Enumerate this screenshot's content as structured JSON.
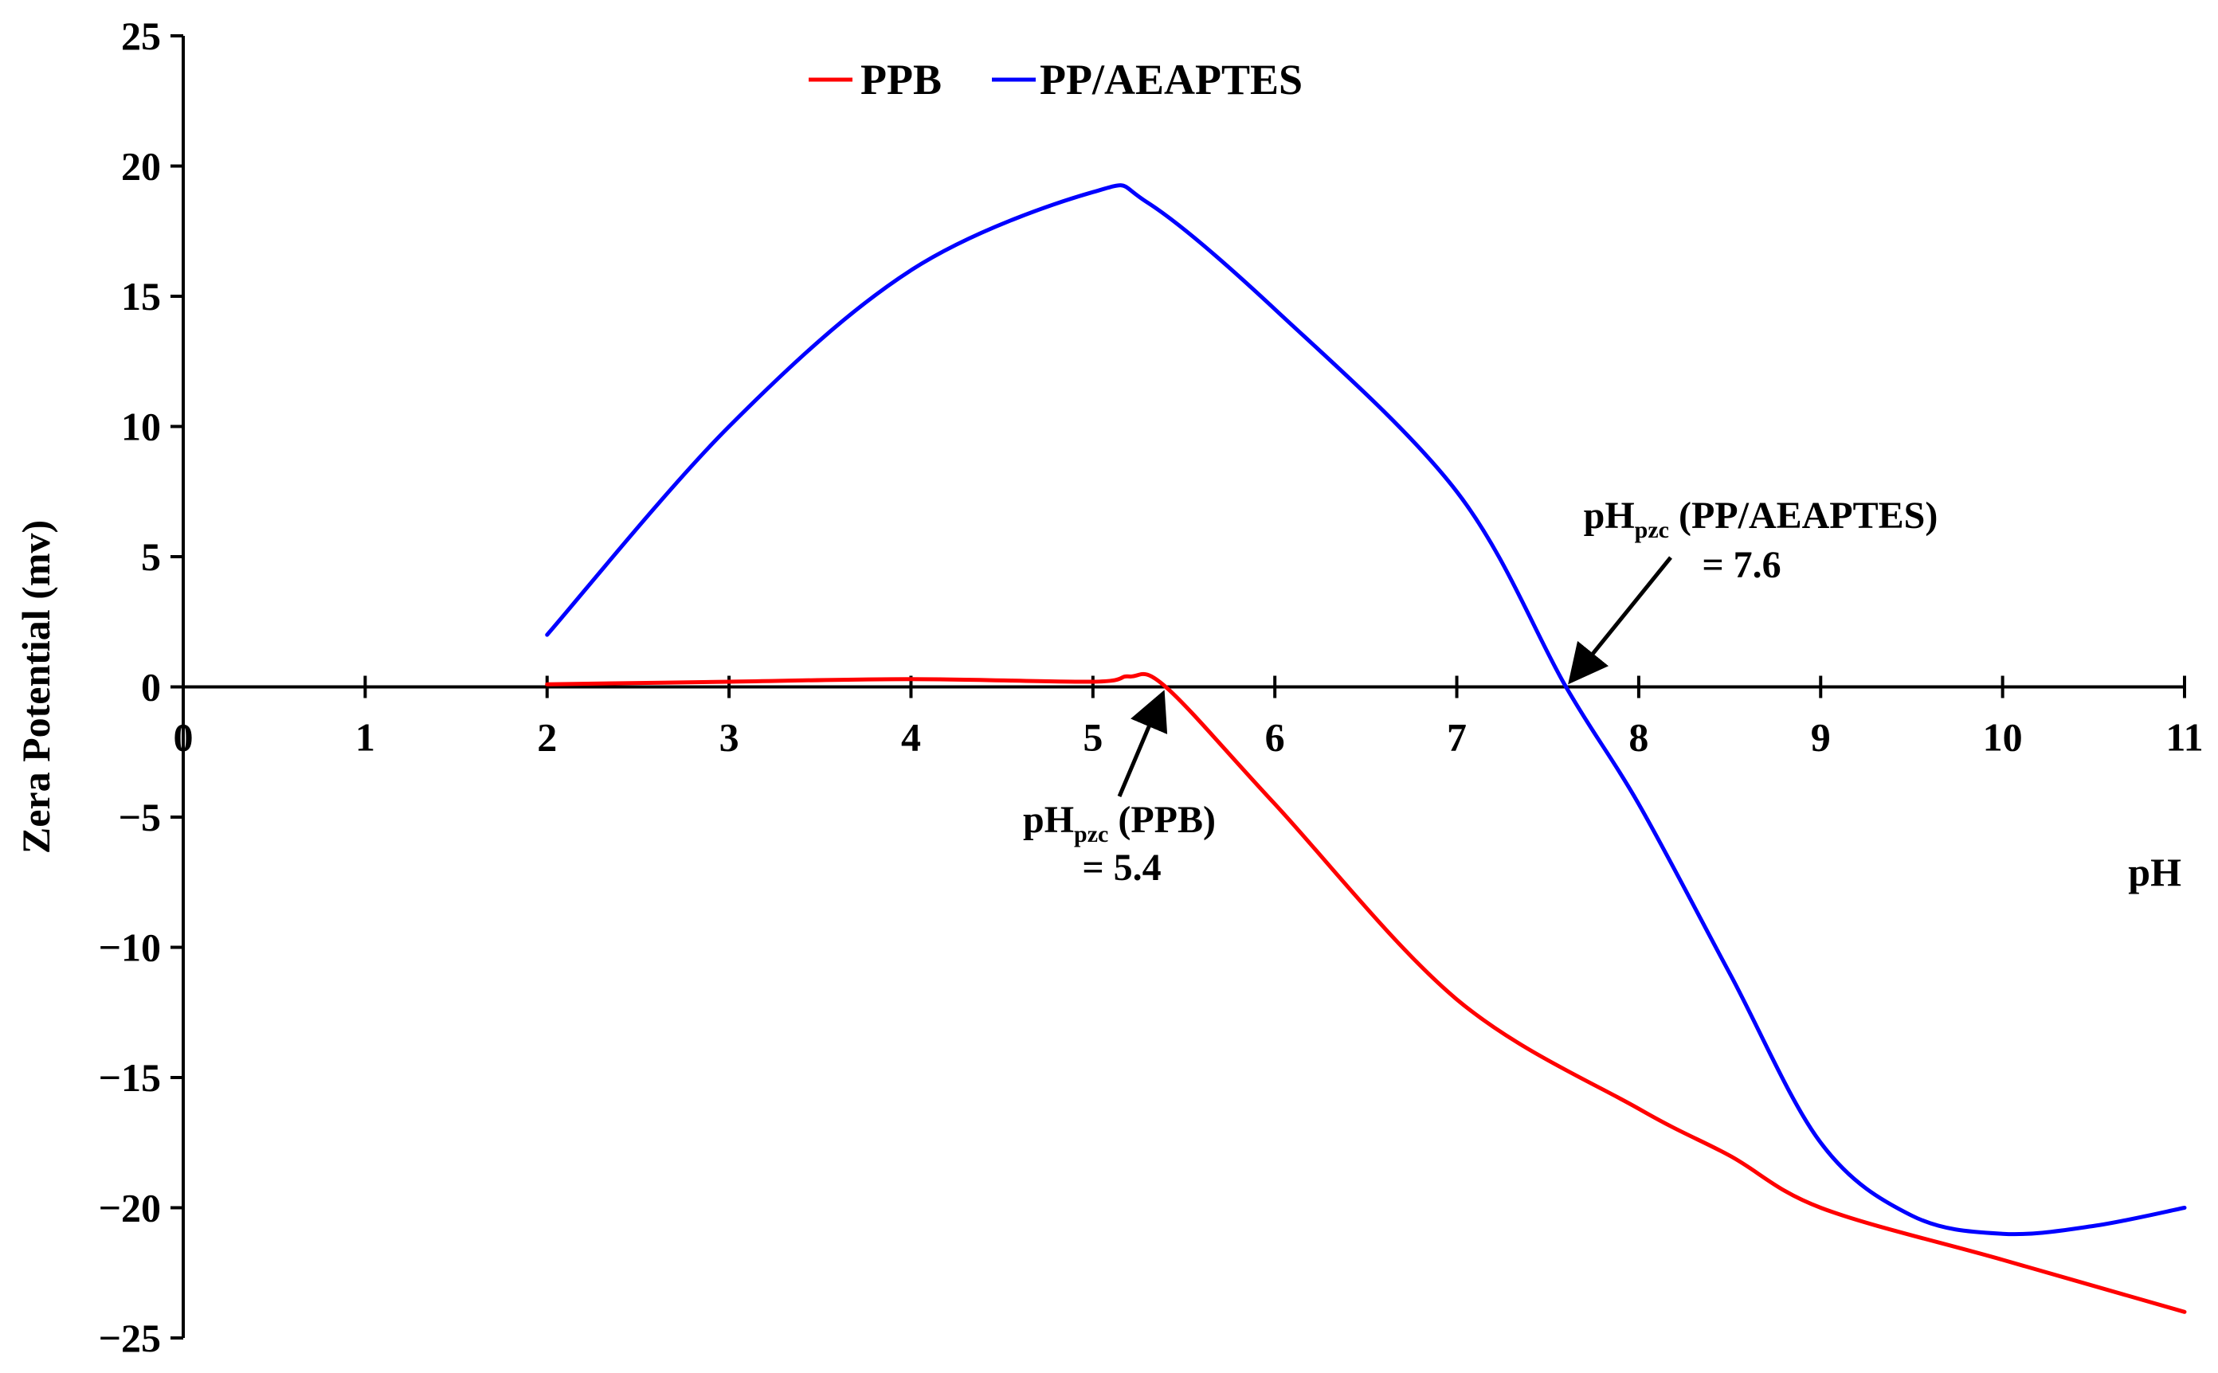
{
  "chart_data": {
    "type": "line",
    "title": "",
    "xlabel": "pH",
    "ylabel": "Zera Potential (mv)",
    "xlim": [
      0,
      11
    ],
    "ylim": [
      -25,
      25
    ],
    "x_ticks": [
      0,
      1,
      2,
      3,
      4,
      5,
      6,
      7,
      8,
      9,
      10,
      11
    ],
    "y_ticks": [
      25,
      20,
      15,
      10,
      5,
      0,
      -5,
      -10,
      -15,
      -20,
      -25
    ],
    "x_tick_labels": [
      "0",
      "1",
      "2",
      "3",
      "4",
      "5",
      "6",
      "7",
      "8",
      "9",
      "10",
      "11"
    ],
    "y_tick_labels": [
      "25",
      "20",
      "15",
      "10",
      "5",
      "0",
      "−5",
      "−10",
      "−15",
      "−20",
      "−25"
    ],
    "grid": false,
    "legend_position": "top",
    "series": [
      {
        "name": "PPB",
        "color": "#ff0000",
        "x": [
          2,
          3,
          4,
          5,
          5.2,
          5.4,
          6,
          7,
          8,
          8.5,
          9,
          10,
          11
        ],
        "y": [
          0.1,
          0.2,
          0.3,
          0.2,
          0.4,
          0,
          -4.5,
          -12,
          -16.2,
          -18,
          -20,
          -22,
          -24
        ]
      },
      {
        "name": "PP/AEAPTES",
        "color": "#0000ff",
        "x": [
          2,
          3,
          4,
          5,
          5.3,
          6,
          7,
          7.6,
          8,
          8.5,
          9,
          9.5,
          10,
          10.5,
          11
        ],
        "y": [
          2,
          10,
          16,
          19,
          18.6,
          14.5,
          7.5,
          0,
          -4.5,
          -11,
          -17.5,
          -20.3,
          -21,
          -20.7,
          -20
        ]
      }
    ],
    "annotations": [
      {
        "main": "pH",
        "sub": "pzc",
        "label": "(PPB)",
        "value": "= 5.4",
        "target_x": 5.4,
        "target_y": 0
      },
      {
        "main": "pH",
        "sub": "pzc",
        "label": "(PP/AEAPTES)",
        "value": "= 7.6",
        "target_x": 7.6,
        "target_y": 0
      }
    ]
  }
}
